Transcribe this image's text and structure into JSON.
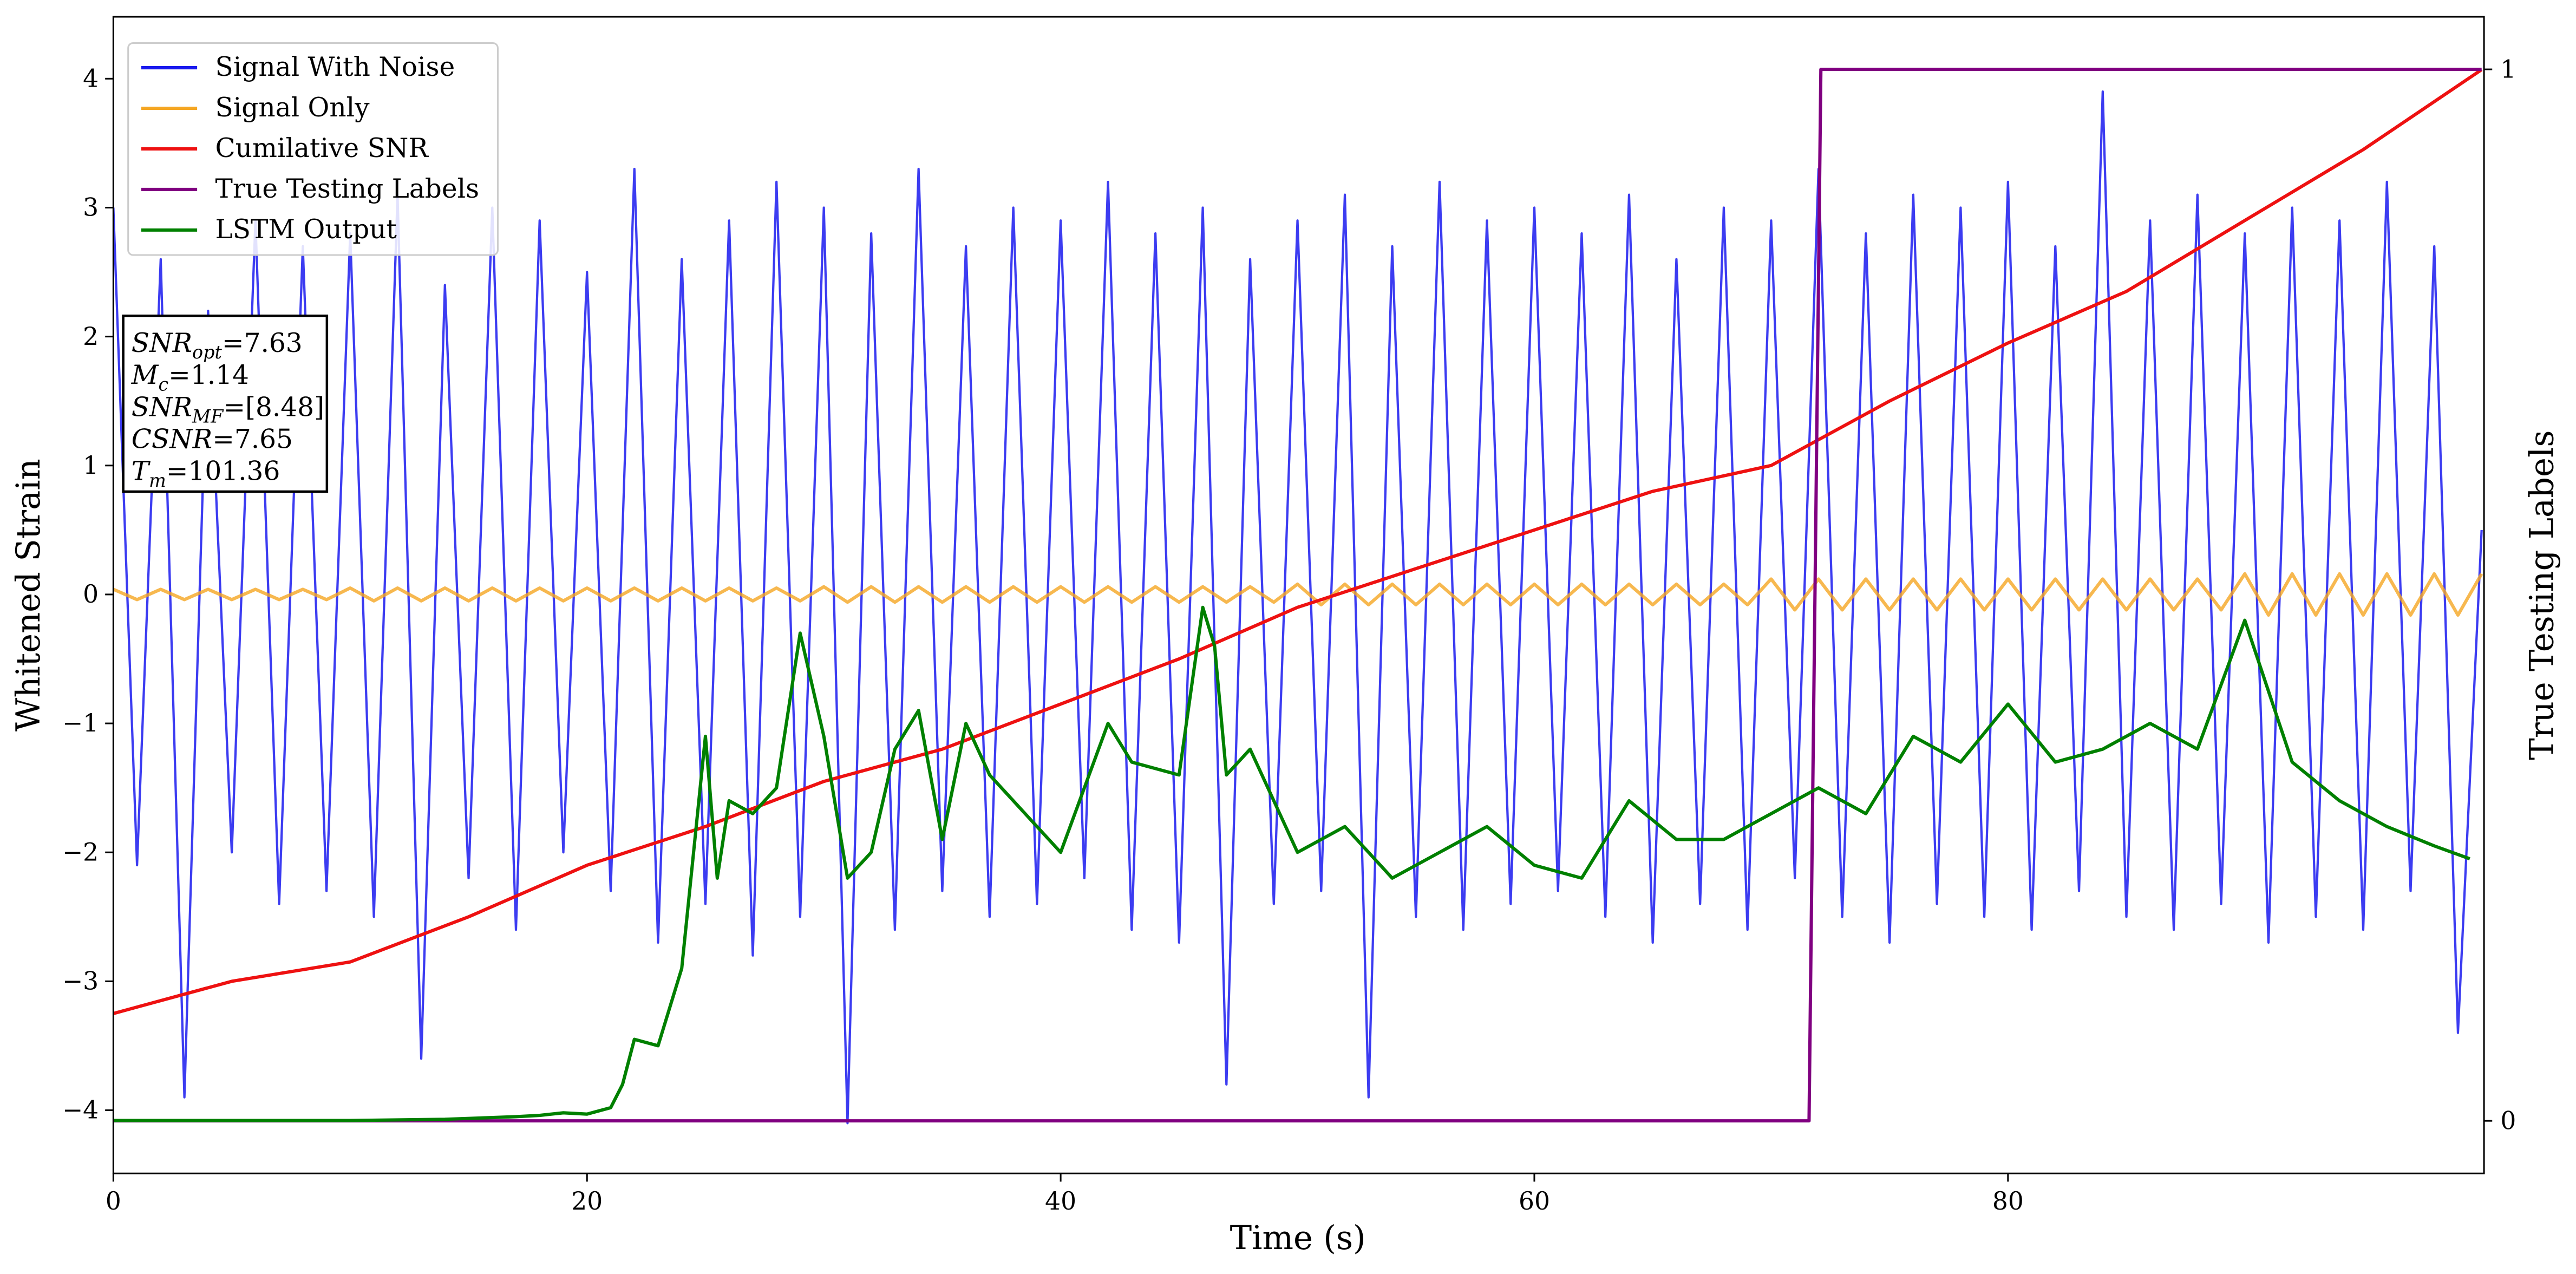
{
  "chart_data": {
    "type": "line",
    "xlabel": "Time (s)",
    "ylabel": "Whitened Strain",
    "y2label": "True Testing Labels",
    "xlim": [
      0,
      100.1
    ],
    "ylim": [
      -4.49,
      4.48
    ],
    "y2lim": [
      -0.05,
      1.05
    ],
    "xticks": [
      0,
      20,
      40,
      60,
      80
    ],
    "yticks": [
      {
        "value": -4,
        "label": "−4"
      },
      {
        "value": -3,
        "label": "−3"
      },
      {
        "value": -2,
        "label": "−2"
      },
      {
        "value": -1,
        "label": "−1"
      },
      0,
      1,
      2,
      3,
      4
    ],
    "y2ticks": [
      0,
      1
    ],
    "legend": "upper left",
    "annotations": [
      {
        "main": "SNR",
        "sub": "opt",
        "rest": "=7.63"
      },
      {
        "main": "M",
        "sub": "c",
        "rest": "=1.14"
      },
      {
        "main": "SNR",
        "sub": "MF",
        "rest": "=[8.48]"
      },
      {
        "main": "CSNR",
        "rest": "=7.65"
      },
      {
        "main": "T",
        "sub": "m",
        "rest": "=101.36"
      }
    ],
    "series": [
      {
        "name": "Signal With Noise",
        "color": "#1a1aee",
        "x": [
          0,
          1,
          2,
          3,
          4,
          5,
          6,
          7,
          8,
          9,
          10,
          11,
          12,
          13,
          14,
          15,
          16,
          17,
          18,
          19,
          20,
          21,
          22,
          23,
          24,
          25,
          26,
          27,
          28,
          29,
          30,
          31,
          32,
          33,
          34,
          35,
          36,
          37,
          38,
          39,
          40,
          41,
          42,
          43,
          44,
          45,
          46,
          47,
          48,
          49,
          50,
          51,
          52,
          53,
          54,
          55,
          56,
          57,
          58,
          59,
          60,
          61,
          62,
          63,
          64,
          65,
          66,
          67,
          68,
          69,
          70,
          71,
          72,
          73,
          74,
          75,
          76,
          77,
          78,
          79,
          80,
          81,
          82,
          83,
          84,
          85,
          86,
          87,
          88,
          89,
          90,
          91,
          92,
          93,
          94,
          95,
          96,
          97,
          98,
          99,
          100
        ],
        "values": [
          3.0,
          -2.1,
          2.6,
          -3.9,
          2.2,
          -2.0,
          2.9,
          -2.4,
          2.7,
          -2.3,
          2.8,
          -2.5,
          3.1,
          -3.6,
          2.4,
          -2.2,
          3.0,
          -2.6,
          2.9,
          -2.0,
          2.5,
          -2.3,
          3.3,
          -2.7,
          2.6,
          -2.4,
          2.9,
          -2.8,
          3.2,
          -2.5,
          3.0,
          -4.1,
          2.8,
          -2.6,
          3.3,
          -2.3,
          2.7,
          -2.5,
          3.0,
          -2.4,
          2.9,
          -2.2,
          3.2,
          -2.6,
          2.8,
          -2.7,
          3.0,
          -3.8,
          2.6,
          -2.4,
          2.9,
          -2.3,
          3.1,
          -3.9,
          2.7,
          -2.5,
          3.2,
          -2.6,
          2.9,
          -2.4,
          3.0,
          -2.3,
          2.8,
          -2.5,
          3.1,
          -2.7,
          2.6,
          -2.4,
          3.0,
          -2.6,
          2.9,
          -2.2,
          3.3,
          -2.5,
          2.8,
          -2.7,
          3.1,
          -2.4,
          3.0,
          -2.5,
          3.2,
          -2.6,
          2.7,
          -2.3,
          3.9,
          -2.5,
          2.9,
          -2.6,
          3.1,
          -2.4,
          2.8,
          -2.7,
          3.0,
          -2.5,
          2.9,
          -2.6,
          3.2,
          -2.3,
          2.7,
          -3.4,
          0.5
        ]
      },
      {
        "name": "Signal Only",
        "color": "#f5a623",
        "x": [
          0,
          1,
          2,
          3,
          4,
          5,
          6,
          7,
          8,
          9,
          10,
          11,
          12,
          13,
          14,
          15,
          16,
          17,
          18,
          19,
          20,
          21,
          22,
          23,
          24,
          25,
          26,
          27,
          28,
          29,
          30,
          31,
          32,
          33,
          34,
          35,
          36,
          37,
          38,
          39,
          40,
          41,
          42,
          43,
          44,
          45,
          46,
          47,
          48,
          49,
          50,
          51,
          52,
          53,
          54,
          55,
          56,
          57,
          58,
          59,
          60,
          61,
          62,
          63,
          64,
          65,
          66,
          67,
          68,
          69,
          70,
          71,
          72,
          73,
          74,
          75,
          76,
          77,
          78,
          79,
          80,
          81,
          82,
          83,
          84,
          85,
          86,
          87,
          88,
          89,
          90,
          91,
          92,
          93,
          94,
          95,
          96,
          97,
          98,
          99,
          100
        ],
        "values": [
          0.04,
          -0.04,
          0.04,
          -0.04,
          0.04,
          -0.04,
          0.04,
          -0.04,
          0.04,
          -0.04,
          0.05,
          -0.05,
          0.05,
          -0.05,
          0.05,
          -0.05,
          0.05,
          -0.05,
          0.05,
          -0.05,
          0.05,
          -0.05,
          0.05,
          -0.05,
          0.05,
          -0.05,
          0.05,
          -0.05,
          0.05,
          -0.05,
          0.06,
          -0.06,
          0.06,
          -0.06,
          0.06,
          -0.06,
          0.06,
          -0.06,
          0.06,
          -0.06,
          0.06,
          -0.06,
          0.06,
          -0.06,
          0.06,
          -0.06,
          0.06,
          -0.06,
          0.06,
          -0.06,
          0.08,
          -0.08,
          0.08,
          -0.08,
          0.08,
          -0.08,
          0.08,
          -0.08,
          0.08,
          -0.08,
          0.08,
          -0.08,
          0.08,
          -0.08,
          0.08,
          -0.08,
          0.08,
          -0.08,
          0.08,
          -0.08,
          0.12,
          -0.12,
          0.12,
          -0.12,
          0.12,
          -0.12,
          0.12,
          -0.12,
          0.12,
          -0.12,
          0.12,
          -0.12,
          0.12,
          -0.12,
          0.12,
          -0.12,
          0.12,
          -0.12,
          0.12,
          -0.12,
          0.16,
          -0.16,
          0.16,
          -0.16,
          0.16,
          -0.16,
          0.16,
          -0.16,
          0.16,
          -0.16,
          0.16
        ]
      },
      {
        "name": "Cumilative SNR",
        "color": "#ee1111",
        "x": [
          0,
          5,
          10,
          15,
          20,
          25,
          30,
          35,
          40,
          45,
          50,
          55,
          60,
          65,
          70,
          75,
          80,
          85,
          90,
          95,
          100
        ],
        "values": [
          -3.25,
          -3.0,
          -2.85,
          -2.5,
          -2.1,
          -1.8,
          -1.45,
          -1.2,
          -0.85,
          -0.5,
          -0.1,
          0.2,
          0.5,
          0.8,
          1.0,
          1.5,
          1.95,
          2.35,
          2.9,
          3.45,
          4.07
        ]
      },
      {
        "name": "True Testing Labels",
        "color": "#800080",
        "axis": "y2",
        "x": [
          0,
          71.6,
          72.1,
          100
        ],
        "values": [
          0,
          0,
          1,
          1
        ]
      },
      {
        "name": "LSTM Output",
        "color": "#008000",
        "x": [
          0,
          10,
          14,
          17,
          18,
          19,
          20,
          21,
          21.5,
          22,
          23,
          24,
          25,
          25.5,
          26,
          27,
          28,
          29,
          30,
          31,
          32,
          33,
          34,
          35,
          36,
          37,
          38,
          40,
          42,
          43,
          45,
          46,
          46.5,
          47,
          48,
          50,
          52,
          54,
          56,
          58,
          60,
          62,
          64,
          66,
          68,
          70,
          72,
          74,
          76,
          78,
          80,
          82,
          84,
          86,
          88,
          90,
          92,
          94,
          96,
          98,
          99.5
        ],
        "values": [
          -4.08,
          -4.08,
          -4.07,
          -4.05,
          -4.04,
          -4.02,
          -4.03,
          -3.98,
          -3.8,
          -3.45,
          -3.5,
          -2.9,
          -1.1,
          -2.2,
          -1.6,
          -1.7,
          -1.5,
          -0.3,
          -1.1,
          -2.2,
          -2.0,
          -1.2,
          -0.9,
          -1.9,
          -1.0,
          -1.4,
          -1.6,
          -2.0,
          -1.0,
          -1.3,
          -1.4,
          -0.1,
          -0.4,
          -1.4,
          -1.2,
          -2.0,
          -1.8,
          -2.2,
          -2.0,
          -1.8,
          -2.1,
          -2.2,
          -1.6,
          -1.9,
          -1.9,
          -1.7,
          -1.5,
          -1.7,
          -1.1,
          -1.3,
          -0.85,
          -1.3,
          -1.2,
          -1.0,
          -1.2,
          -0.2,
          -1.3,
          -1.6,
          -1.8,
          -1.95,
          -2.05
        ]
      }
    ]
  }
}
